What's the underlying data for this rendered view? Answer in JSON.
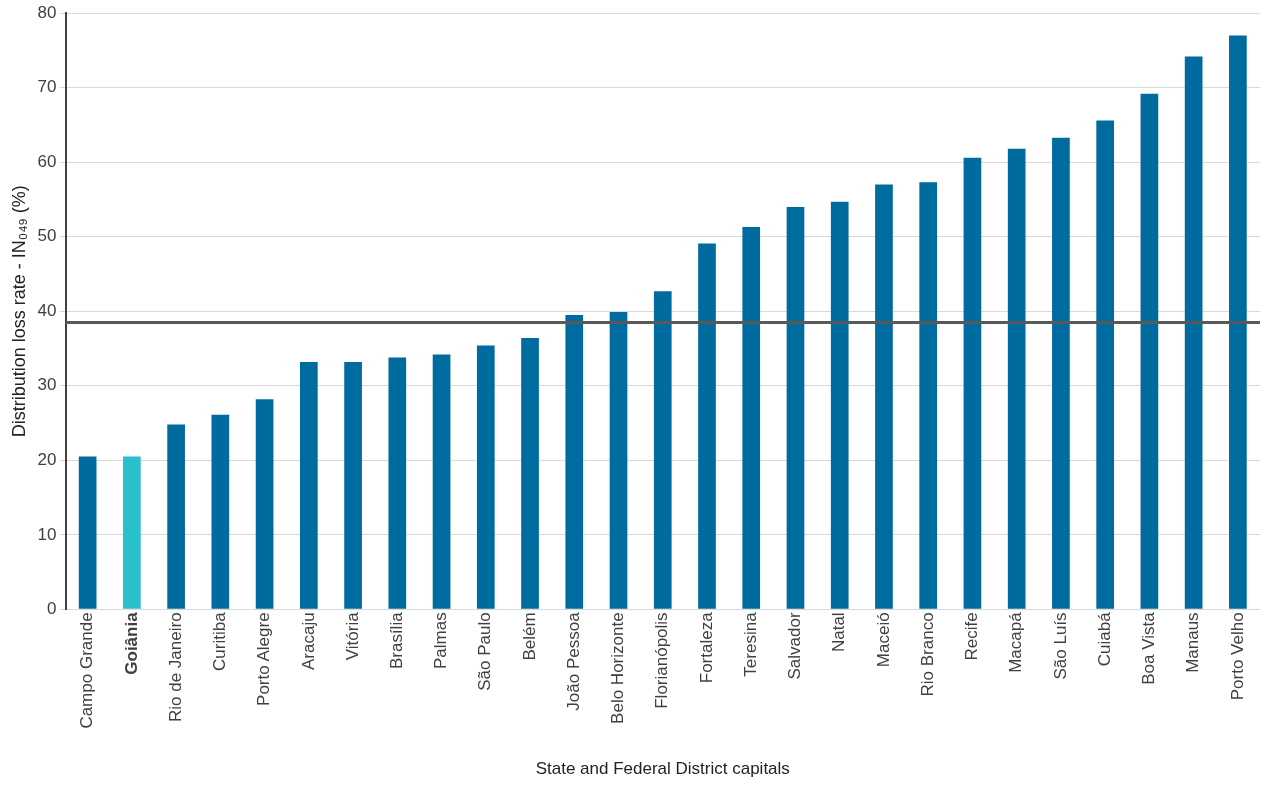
{
  "chart_data": {
    "type": "bar",
    "xlabel": "State and Federal District capitals",
    "ylabel": "Distribution loss rate - IN₀₄₉ (%)",
    "categories": [
      "Campo Grande",
      "Goiânia",
      "Rio de Janeiro",
      "Curitiba",
      "Porto Alegre",
      "Aracaju",
      "Vitória",
      "Brasília",
      "Palmas",
      "São Paulo",
      "Belém",
      "João Pessoa",
      "Belo Horizonte",
      "Florianópolis",
      "Fortaleza",
      "Teresina",
      "Salvador",
      "Natal",
      "Maceió",
      "Rio Branco",
      "Recife",
      "Macapá",
      "São Luís",
      "Cuiabá",
      "Boa Vista",
      "Manaus",
      "Porto Velho"
    ],
    "values": [
      20.5,
      20.5,
      24.8,
      26.1,
      28.2,
      33.2,
      33.2,
      33.8,
      34.2,
      35.4,
      36.4,
      39.5,
      39.9,
      42.7,
      49.1,
      51.3,
      54.0,
      54.7,
      57.0,
      57.3,
      60.6,
      61.8,
      63.3,
      65.6,
      69.2,
      74.2,
      77.0
    ],
    "colors": [
      "#006b9e",
      "#29bfcc",
      "#006b9e",
      "#006b9e",
      "#006b9e",
      "#006b9e",
      "#006b9e",
      "#006b9e",
      "#006b9e",
      "#006b9e",
      "#006b9e",
      "#006b9e",
      "#006b9e",
      "#006b9e",
      "#006b9e",
      "#006b9e",
      "#006b9e",
      "#006b9e",
      "#006b9e",
      "#006b9e",
      "#006b9e",
      "#006b9e",
      "#006b9e",
      "#006b9e",
      "#006b9e",
      "#006b9e",
      "#006b9e"
    ],
    "ylim": [
      0,
      80
    ],
    "yticks": [
      0,
      10,
      20,
      30,
      40,
      50,
      60,
      70,
      80
    ],
    "grid": "y",
    "legend": false,
    "ref_lines": [
      {
        "axis": "y",
        "value": 38.5,
        "label": null,
        "color": "#595959"
      }
    ]
  }
}
